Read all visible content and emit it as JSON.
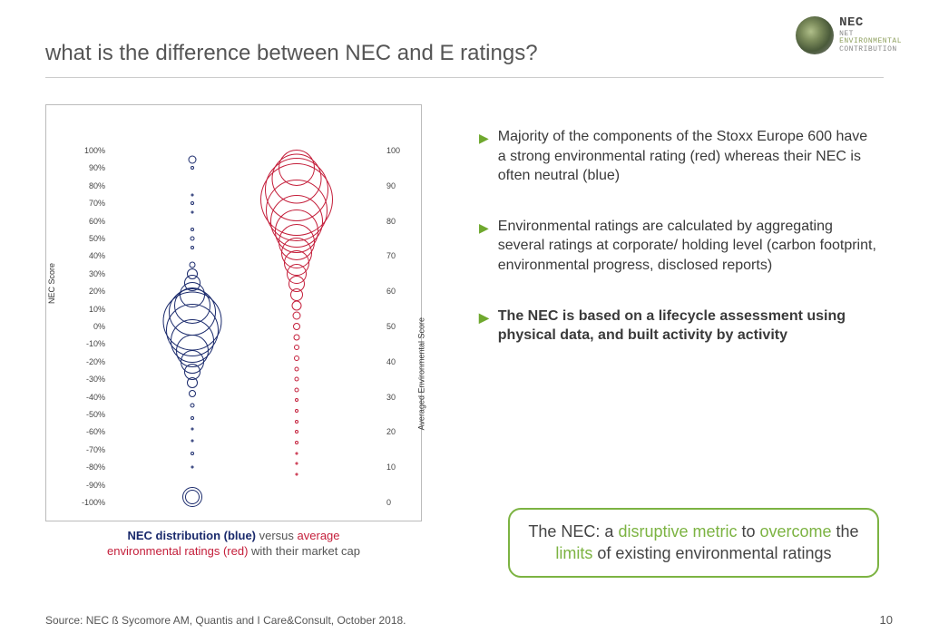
{
  "title": "what is the difference between NEC and E ratings?",
  "logo": {
    "line1": "NET",
    "line2": "ENVIRONMENTAL",
    "line3": "CONTRIBUTION",
    "nec": "NEC"
  },
  "chart": {
    "type": "bubble",
    "left_axis": {
      "label": "NEC Score",
      "ticks": [
        "100%",
        "90%",
        "80%",
        "70%",
        "60%",
        "50%",
        "40%",
        "30%",
        "20%",
        "10%",
        "0%",
        "-10%",
        "-20%",
        "-30%",
        "-40%",
        "-50%",
        "-60%",
        "-70%",
        "-80%",
        "-90%",
        "-100%"
      ],
      "min": -100,
      "max": 100
    },
    "right_axis": {
      "label": "Averaged Environmental Score",
      "ticks": [
        "100",
        "90",
        "80",
        "70",
        "60",
        "50",
        "40",
        "30",
        "20",
        "10",
        "0"
      ],
      "min": 0,
      "max": 100
    },
    "nec_x": 0.3,
    "env_x": 0.68,
    "nec_color": "#1a2a6c",
    "env_color": "#c41e3a",
    "stroke_width": 1.2,
    "nec_bubbles": [
      {
        "y": 95,
        "r": 9
      },
      {
        "y": 90,
        "r": 4
      },
      {
        "y": 75,
        "r": 3
      },
      {
        "y": 70,
        "r": 4
      },
      {
        "y": 65,
        "r": 3
      },
      {
        "y": 55,
        "r": 4
      },
      {
        "y": 50,
        "r": 5
      },
      {
        "y": 45,
        "r": 4
      },
      {
        "y": 35,
        "r": 7
      },
      {
        "y": 30,
        "r": 12
      },
      {
        "y": 25,
        "r": 18
      },
      {
        "y": 18,
        "r": 28
      },
      {
        "y": 12,
        "r": 40
      },
      {
        "y": 8,
        "r": 52
      },
      {
        "y": 3,
        "r": 65
      },
      {
        "y": -2,
        "r": 58
      },
      {
        "y": -8,
        "r": 48
      },
      {
        "y": -14,
        "r": 36
      },
      {
        "y": -20,
        "r": 26
      },
      {
        "y": -26,
        "r": 18
      },
      {
        "y": -32,
        "r": 12
      },
      {
        "y": -38,
        "r": 8
      },
      {
        "y": -45,
        "r": 5
      },
      {
        "y": -52,
        "r": 4
      },
      {
        "y": -58,
        "r": 3
      },
      {
        "y": -65,
        "r": 3
      },
      {
        "y": -72,
        "r": 4
      },
      {
        "y": -80,
        "r": 3
      },
      {
        "y": -97,
        "r": 22
      },
      {
        "y": -97,
        "r": 16
      }
    ],
    "env_bubbles": [
      {
        "y": 95,
        "r": 40
      },
      {
        "y": 92,
        "r": 55
      },
      {
        "y": 89,
        "r": 70
      },
      {
        "y": 86,
        "r": 80
      },
      {
        "y": 83,
        "r": 68
      },
      {
        "y": 80,
        "r": 58
      },
      {
        "y": 77,
        "r": 48
      },
      {
        "y": 74,
        "r": 40
      },
      {
        "y": 71,
        "r": 34
      },
      {
        "y": 68,
        "r": 28
      },
      {
        "y": 65,
        "r": 22
      },
      {
        "y": 62,
        "r": 18
      },
      {
        "y": 59,
        "r": 14
      },
      {
        "y": 56,
        "r": 11
      },
      {
        "y": 53,
        "r": 9
      },
      {
        "y": 50,
        "r": 8
      },
      {
        "y": 47,
        "r": 7
      },
      {
        "y": 44,
        "r": 6
      },
      {
        "y": 41,
        "r": 6
      },
      {
        "y": 38,
        "r": 5
      },
      {
        "y": 35,
        "r": 5
      },
      {
        "y": 32,
        "r": 5
      },
      {
        "y": 29,
        "r": 4
      },
      {
        "y": 26,
        "r": 4
      },
      {
        "y": 23,
        "r": 4
      },
      {
        "y": 20,
        "r": 4
      },
      {
        "y": 17,
        "r": 4
      },
      {
        "y": 14,
        "r": 3
      },
      {
        "y": 11,
        "r": 3
      },
      {
        "y": 8,
        "r": 3
      }
    ]
  },
  "caption": {
    "p1a": "NEC distribution (blue)",
    "p1b": " versus ",
    "p2a": "average",
    "p2b": "environmental ratings (red)",
    "p2c": " with their market cap"
  },
  "bullets": [
    {
      "text": "Majority of the components of the Stoxx Europe 600 have a strong environmental rating (red) whereas their NEC is often neutral (blue)",
      "bold": false
    },
    {
      "text": "Environmental ratings are calculated by aggregating several ratings at corporate/ holding level (carbon footprint, environmental progress, disclosed reports)",
      "bold": false
    },
    {
      "text": "The NEC is based on a lifecycle assessment using physical data, and built activity by activity",
      "bold": true
    }
  ],
  "callout": {
    "pre": "The NEC: a ",
    "h1": "disruptive metric",
    "mid1": " to ",
    "h2": "overcome",
    "mid2": " the ",
    "h3": "limits",
    "post": " of existing environmental ratings"
  },
  "source": "Source: NEC ß Sycomore AM, Quantis and I Care&Consult, October 2018.",
  "page": "10"
}
